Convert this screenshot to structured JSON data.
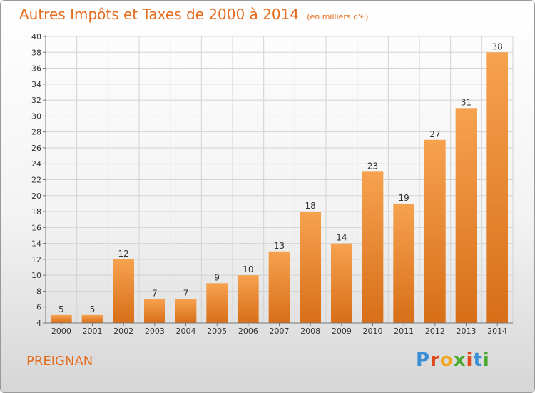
{
  "chart_data": {
    "type": "bar",
    "title": "Autres Impôts et Taxes de 2000 à 2014",
    "unit": "(en milliers d'€)",
    "categories": [
      "2000",
      "2001",
      "2002",
      "2003",
      "2004",
      "2005",
      "2006",
      "2007",
      "2008",
      "2009",
      "2010",
      "2011",
      "2012",
      "2013",
      "2014"
    ],
    "values": [
      5,
      5,
      12,
      7,
      7,
      9,
      10,
      13,
      18,
      14,
      23,
      19,
      27,
      31,
      38
    ],
    "ylim": [
      4,
      40
    ],
    "yticks": [
      4,
      6,
      8,
      10,
      12,
      14,
      16,
      18,
      20,
      22,
      24,
      26,
      28,
      30,
      32,
      34,
      36,
      38,
      40
    ],
    "grid": true,
    "colors": {
      "bar_light": "#f6a24f",
      "bar_dark": "#d86e18",
      "title": "#e46d1f"
    }
  },
  "place_name": "PREIGNAN",
  "logo": {
    "letters": [
      {
        "ch": "P",
        "color": "#3a8fd6"
      },
      {
        "ch": "r",
        "color": "#e0491c"
      },
      {
        "ch": "o",
        "color": "#f2a81c"
      },
      {
        "ch": "x",
        "color": "#4aaa2e"
      },
      {
        "ch": "i",
        "color": "#e0491c"
      },
      {
        "ch": "t",
        "color": "#3a8fd6"
      },
      {
        "ch": "i",
        "color": "#4aaa2e"
      }
    ]
  }
}
